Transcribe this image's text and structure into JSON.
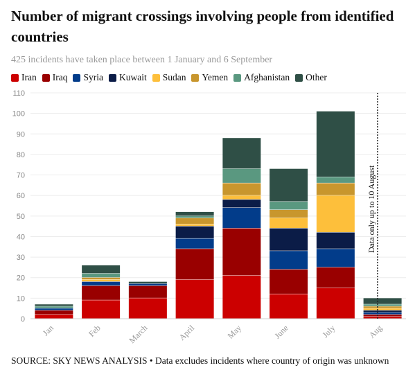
{
  "chart_data": {
    "type": "bar",
    "stacked": true,
    "title": "Number of migrant crossings involving people from identified countries",
    "subtitle": "425 incidents have taken place between 1 January and 6 September",
    "categories": [
      "Jan",
      "Feb",
      "March",
      "April",
      "May",
      "June",
      "July",
      "Aug"
    ],
    "series": [
      {
        "name": "Iran",
        "color": "#cc0000",
        "values": [
          2,
          9,
          10,
          19,
          21,
          12,
          15,
          1
        ]
      },
      {
        "name": "Iraq",
        "color": "#990000",
        "values": [
          2,
          7,
          6,
          15,
          23,
          12,
          10,
          1
        ]
      },
      {
        "name": "Syria",
        "color": "#023c8a",
        "values": [
          1,
          2,
          1,
          5,
          10,
          9,
          9,
          1
        ]
      },
      {
        "name": "Kuwait",
        "color": "#0b1c47",
        "values": [
          0,
          0,
          0,
          6,
          4,
          11,
          8,
          1
        ]
      },
      {
        "name": "Sudan",
        "color": "#fdbf3b",
        "values": [
          0,
          1,
          0,
          1,
          2,
          5,
          18,
          1
        ]
      },
      {
        "name": "Yemen",
        "color": "#c8962d",
        "values": [
          0,
          1,
          0,
          3,
          6,
          4,
          6,
          1
        ]
      },
      {
        "name": "Afghanistan",
        "color": "#5a9880",
        "values": [
          1,
          2,
          0,
          1,
          7,
          4,
          3,
          1
        ]
      },
      {
        "name": "Other",
        "color": "#2f4f46",
        "values": [
          1,
          4,
          1,
          2,
          15,
          16,
          32,
          3
        ]
      }
    ],
    "ylim": [
      0,
      110
    ],
    "yticks": [
      0,
      10,
      20,
      30,
      40,
      50,
      60,
      70,
      80,
      90,
      100,
      110
    ],
    "grid": true,
    "legend_position": "top",
    "annotation": "Data only up to 10 August"
  },
  "source": "SOURCE: SKY NEWS ANALYSIS • Data excludes incidents where country of origin was unknown"
}
